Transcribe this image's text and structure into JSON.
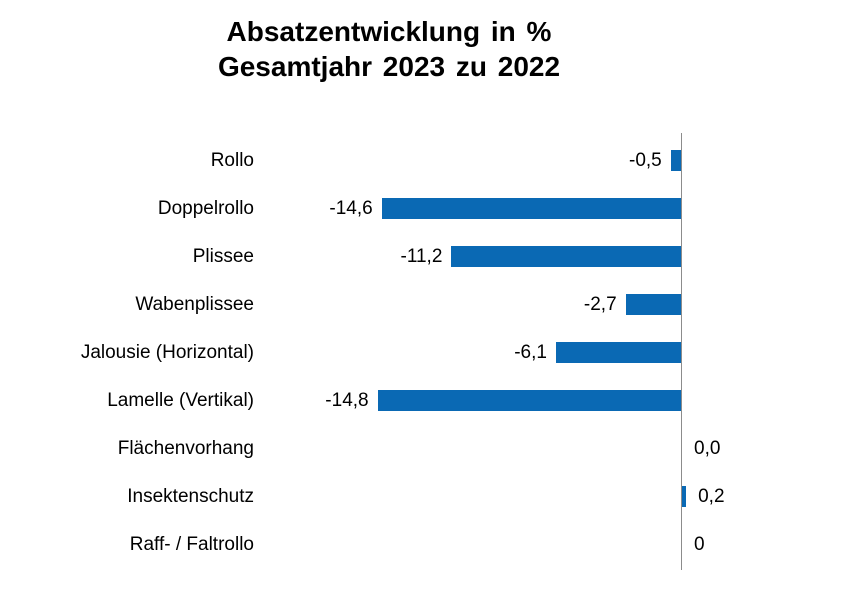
{
  "title": {
    "line1": "Absatzentwicklung in %",
    "line2": "Gesamtjahr 2023 zu 2022"
  },
  "chart_data": {
    "type": "bar",
    "orientation": "horizontal",
    "title": "Absatzentwicklung in % Gesamtjahr 2023 zu 2022",
    "xlabel": "",
    "ylabel": "",
    "grid": false,
    "legend": false,
    "categories": [
      "Rollo",
      "Doppelrollo",
      "Plissee",
      "Wabenplissee",
      "Jalousie (Horizontal)",
      "Lamelle (Vertikal)",
      "Flächenvorhang",
      "Insektenschutz",
      "Raff- / Faltrollo"
    ],
    "values": [
      -0.5,
      -14.6,
      -11.2,
      -2.7,
      -6.1,
      -14.8,
      0.0,
      0.2,
      0
    ],
    "value_labels": [
      "-0,5",
      "-14,6",
      "-11,2",
      "-2,7",
      "-6,1",
      "-14,8",
      "0,0",
      "0,2",
      "0"
    ],
    "xlim": [
      -20.8,
      7.9
    ],
    "bar_color": "#0a69b4",
    "axis_color": "#8c8c8c",
    "text_color": "#000000",
    "background_color": "#ffffff"
  }
}
